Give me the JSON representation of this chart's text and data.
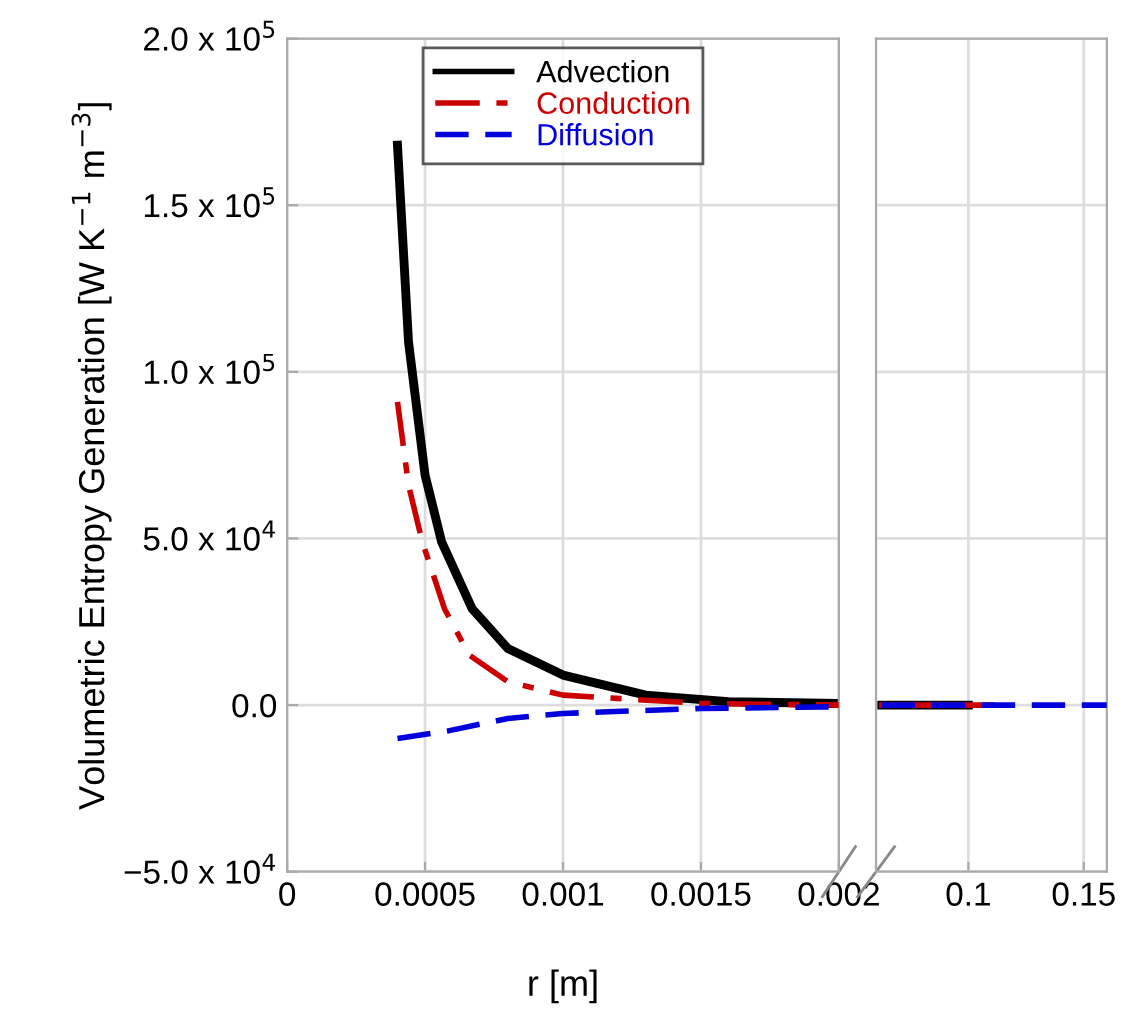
{
  "chart_data": [
    {
      "type": "line",
      "xlabel": "r [m]",
      "ylabel": "Volumetric Entropy Generation [W K$^{−1}$ m$^{−3}$]",
      "xlim": [
        0,
        0.002
      ],
      "xticks": [
        0,
        0.0005,
        0.001,
        0.0015,
        0.002
      ],
      "ylim": [
        -50000,
        200000
      ],
      "yticks": [
        {
          "value": -50000,
          "label": "−5.0 x 10$^{4}$"
        },
        {
          "value": 0,
          "label": "0.0"
        },
        {
          "value": 50000,
          "label": "5.0 x 10$^{4}$"
        },
        {
          "value": 100000,
          "label": "1.0 x 10$^{5}$"
        },
        {
          "value": 150000,
          "label": "1.5 x 10$^{5}$"
        },
        {
          "value": 200000,
          "label": "2.0 x 10$^{5}$"
        }
      ],
      "grid": true,
      "legend": "top",
      "marker": "none",
      "series": [
        {
          "name": "Advection",
          "color": "#000000",
          "line_style": "solid",
          "x": [
            0.0004,
            0.00044,
            0.0005,
            0.00056,
            0.00067,
            0.0008,
            0.001,
            0.0013,
            0.0016,
            0.002
          ],
          "values": [
            168000,
            109000,
            69000,
            49000,
            29000,
            17000,
            9000,
            3000,
            1000,
            500
          ]
        },
        {
          "name": "Conduction",
          "color": "#cc0000",
          "line_style": "dashdot",
          "x": [
            0.0004,
            0.00044,
            0.00049,
            0.00057,
            0.00066,
            0.0008,
            0.001,
            0.0015,
            0.002
          ],
          "values": [
            91000,
            66000,
            49000,
            29000,
            15000,
            7000,
            3000,
            500,
            0
          ]
        },
        {
          "name": "Diffusion",
          "color": "#0000dd",
          "line_style": "dashed",
          "x": [
            0.0004,
            0.00058,
            0.0008,
            0.001,
            0.0015,
            0.002
          ],
          "values": [
            -10000,
            -7800,
            -4000,
            -2500,
            -1000,
            -500
          ]
        }
      ]
    },
    {
      "type": "line",
      "xlim": [
        0.06,
        0.16
      ],
      "xticks": [
        0.1,
        0.15
      ],
      "ylim": [
        -50000,
        200000
      ],
      "tick_labels": "x",
      "grid": true,
      "marker": "none",
      "series": [
        {
          "color": "#000000",
          "line_style": "solid",
          "x": [
            0.0625,
            0.1
          ],
          "values": [
            0,
            0
          ]
        },
        {
          "color": "#cc0000",
          "line_style": "solid",
          "x": [
            0.0625,
            0.11
          ],
          "values": [
            0,
            0
          ]
        },
        {
          "color": "#0000dd",
          "line_style": "dashed",
          "x": [
            0.0625,
            0.16
          ],
          "values": [
            0,
            0
          ]
        }
      ]
    }
  ]
}
